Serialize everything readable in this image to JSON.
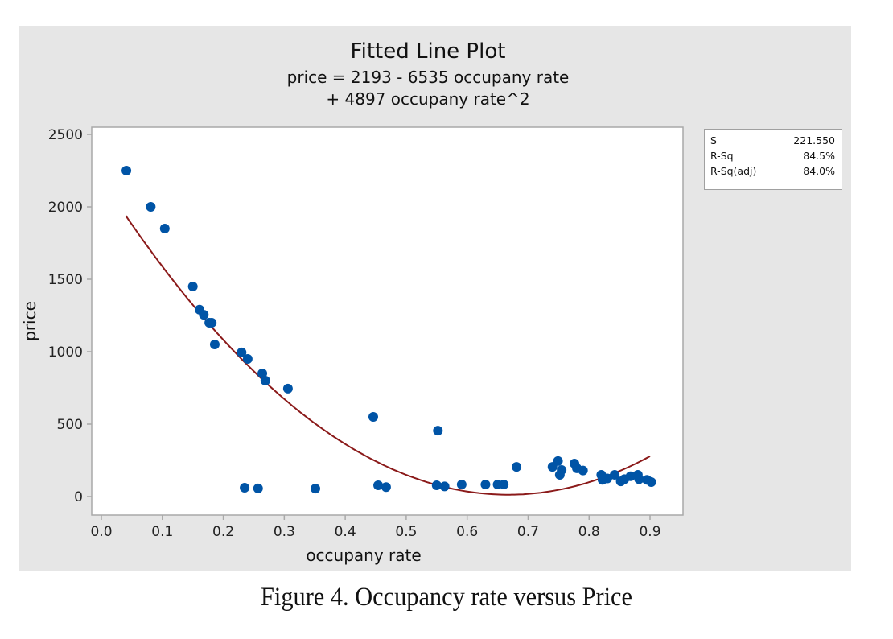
{
  "chart_data": {
    "type": "scatter",
    "title": "Fitted Line Plot",
    "subtitle_lines": [
      "price = 2193 - 6535 occupany rate",
      "+ 4897 occupany rate^2"
    ],
    "xlabel": "occupany rate",
    "ylabel": "price",
    "xlim": [
      -0.01,
      0.96
    ],
    "ylim": [
      -130,
      2550
    ],
    "x_ticks": [
      0.0,
      0.1,
      0.2,
      0.3,
      0.4,
      0.5,
      0.6,
      0.7,
      0.8,
      0.9
    ],
    "x_tick_labels": [
      "0.0",
      "0.1",
      "0.2",
      "0.3",
      "0.4",
      "0.5",
      "0.6",
      "0.7",
      "0.8",
      "0.9"
    ],
    "y_ticks": [
      0,
      500,
      1000,
      1500,
      2000,
      2500
    ],
    "y_tick_labels": [
      "0",
      "500",
      "1000",
      "1500",
      "2000",
      "2500"
    ],
    "grid": false,
    "point_color": "#0054a6",
    "fit_color": "#8b1a1a",
    "fit": {
      "intercept": 2193,
      "b1": -6535,
      "b2": 4897,
      "x_range": [
        0.04,
        0.9
      ]
    },
    "points": [
      {
        "x": 0.041,
        "y": 2250
      },
      {
        "x": 0.081,
        "y": 2000
      },
      {
        "x": 0.104,
        "y": 1850
      },
      {
        "x": 0.15,
        "y": 1450
      },
      {
        "x": 0.161,
        "y": 1290
      },
      {
        "x": 0.168,
        "y": 1255
      },
      {
        "x": 0.177,
        "y": 1200
      },
      {
        "x": 0.181,
        "y": 1200
      },
      {
        "x": 0.186,
        "y": 1050
      },
      {
        "x": 0.23,
        "y": 995
      },
      {
        "x": 0.24,
        "y": 950
      },
      {
        "x": 0.264,
        "y": 850
      },
      {
        "x": 0.269,
        "y": 800
      },
      {
        "x": 0.306,
        "y": 745
      },
      {
        "x": 0.446,
        "y": 550
      },
      {
        "x": 0.552,
        "y": 455
      },
      {
        "x": 0.235,
        "y": 61
      },
      {
        "x": 0.257,
        "y": 56
      },
      {
        "x": 0.351,
        "y": 55
      },
      {
        "x": 0.454,
        "y": 78
      },
      {
        "x": 0.467,
        "y": 65
      },
      {
        "x": 0.55,
        "y": 78
      },
      {
        "x": 0.563,
        "y": 70
      },
      {
        "x": 0.591,
        "y": 83
      },
      {
        "x": 0.63,
        "y": 83
      },
      {
        "x": 0.65,
        "y": 83
      },
      {
        "x": 0.66,
        "y": 83
      },
      {
        "x": 0.681,
        "y": 205
      },
      {
        "x": 0.74,
        "y": 205
      },
      {
        "x": 0.749,
        "y": 245
      },
      {
        "x": 0.752,
        "y": 150
      },
      {
        "x": 0.755,
        "y": 183
      },
      {
        "x": 0.776,
        "y": 228
      },
      {
        "x": 0.78,
        "y": 195
      },
      {
        "x": 0.79,
        "y": 180
      },
      {
        "x": 0.82,
        "y": 150
      },
      {
        "x": 0.822,
        "y": 115
      },
      {
        "x": 0.83,
        "y": 125
      },
      {
        "x": 0.842,
        "y": 150
      },
      {
        "x": 0.852,
        "y": 105
      },
      {
        "x": 0.858,
        "y": 120
      },
      {
        "x": 0.868,
        "y": 140
      },
      {
        "x": 0.88,
        "y": 150
      },
      {
        "x": 0.882,
        "y": 120
      },
      {
        "x": 0.895,
        "y": 115
      },
      {
        "x": 0.902,
        "y": 100
      }
    ]
  },
  "stats": [
    {
      "label": "S",
      "value": "221.550"
    },
    {
      "label": "R-Sq",
      "value": "84.5%"
    },
    {
      "label": "R-Sq(adj)",
      "value": "84.0%"
    }
  ],
  "caption": "Figure 4. Occupancy rate versus Price"
}
